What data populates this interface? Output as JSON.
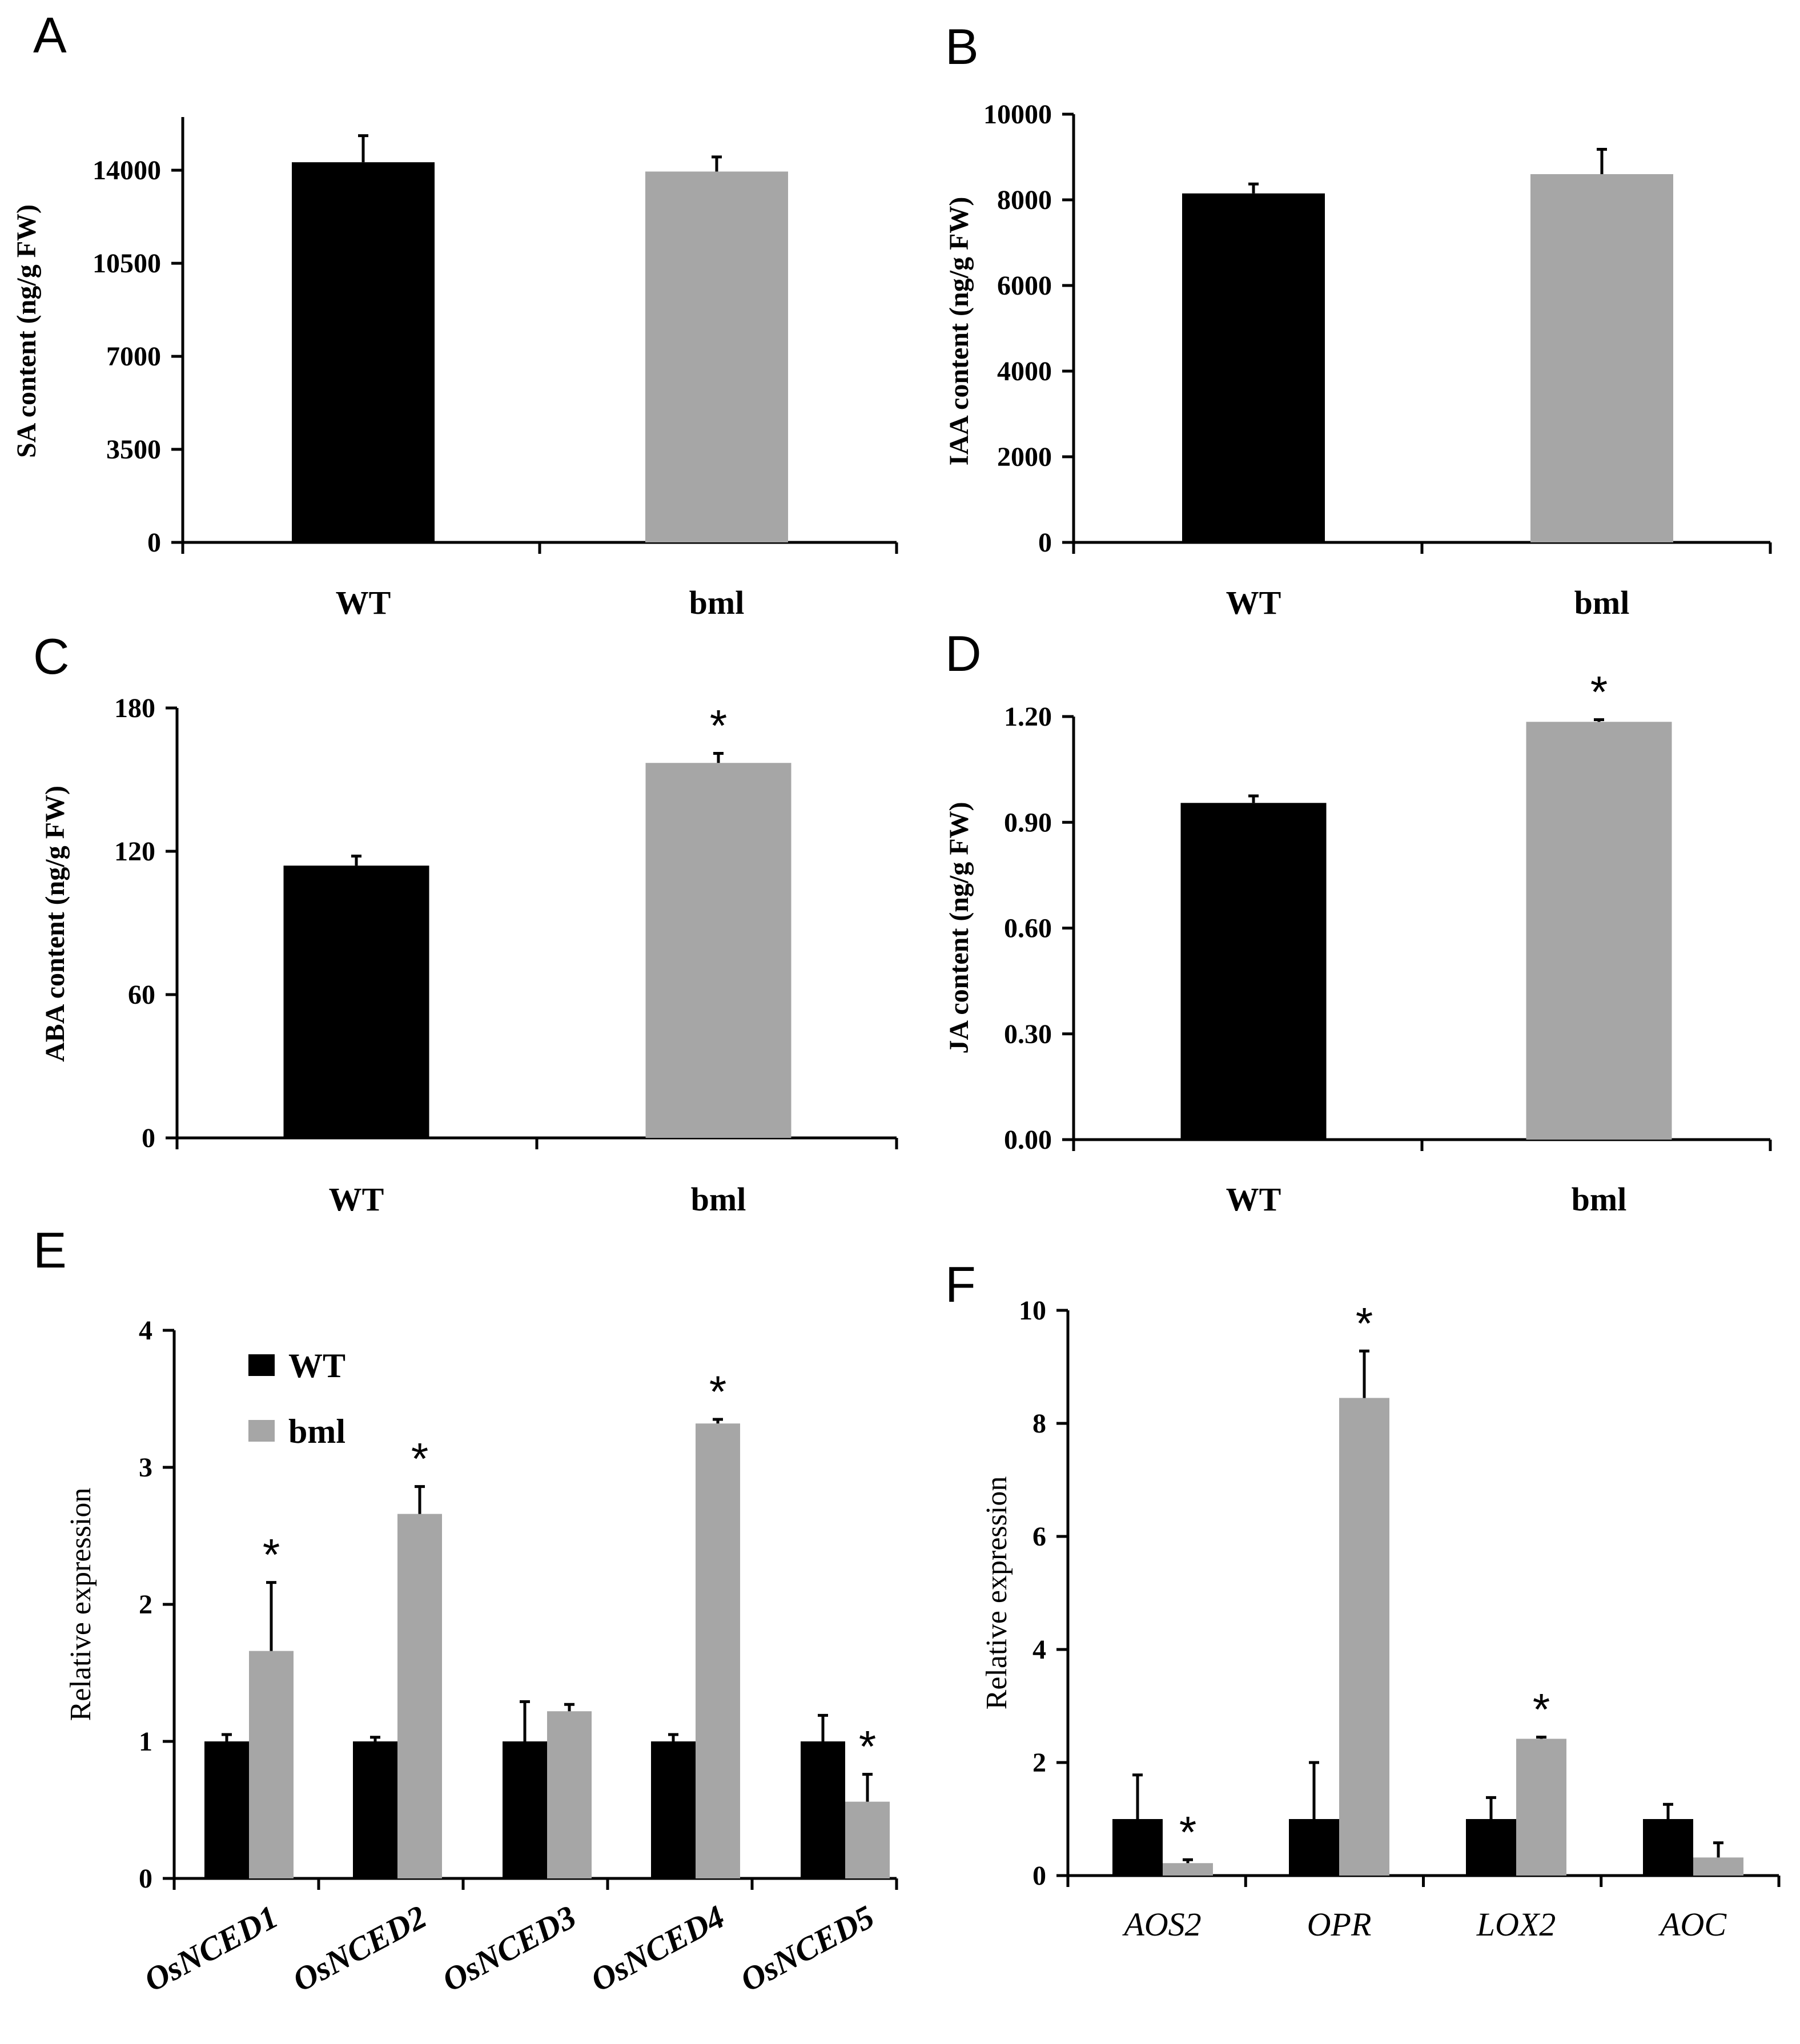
{
  "colors": {
    "wt": "#000000",
    "bml": "#a6a6a6",
    "axis": "#000000"
  },
  "legend": {
    "items": [
      {
        "label": "WT",
        "color_key": "wt"
      },
      {
        "label": "bml",
        "color_key": "bml"
      }
    ]
  },
  "chart_data": [
    {
      "panel": "A",
      "type": "bar",
      "ylabel": "SA content (ng/g FW)",
      "ylim": [
        0,
        16000
      ],
      "yticks": [
        0,
        3500,
        7000,
        10500,
        14000
      ],
      "ytick_labels": [
        "0",
        "3500",
        "7000",
        "10500",
        "14000"
      ],
      "categories": [
        "WT",
        "bml"
      ],
      "series": [
        {
          "name": "value",
          "values": [
            14300,
            13950
          ],
          "errors": [
            1000,
            550
          ],
          "colors": [
            "wt",
            "bml"
          ]
        }
      ],
      "significance": [
        "",
        ""
      ]
    },
    {
      "panel": "B",
      "type": "bar",
      "ylabel": "IAA content (ng/g FW)",
      "ylim": [
        0,
        10000
      ],
      "yticks": [
        0,
        2000,
        4000,
        6000,
        8000,
        10000
      ],
      "ytick_labels": [
        "0",
        "2000",
        "4000",
        "6000",
        "8000",
        "10000"
      ],
      "categories": [
        "WT",
        "bml"
      ],
      "series": [
        {
          "name": "value",
          "values": [
            8150,
            8600
          ],
          "errors": [
            220,
            580
          ],
          "colors": [
            "wt",
            "bml"
          ]
        }
      ],
      "significance": [
        "",
        ""
      ]
    },
    {
      "panel": "C",
      "type": "bar",
      "ylabel": "ABA content (ng/g FW)",
      "ylim": [
        0,
        180
      ],
      "yticks": [
        0,
        60,
        120,
        180
      ],
      "ytick_labels": [
        "0",
        "60",
        "120",
        "180"
      ],
      "categories": [
        "WT",
        "bml"
      ],
      "series": [
        {
          "name": "value",
          "values": [
            114,
            157
          ],
          "errors": [
            4,
            4
          ],
          "colors": [
            "wt",
            "bml"
          ]
        }
      ],
      "significance": [
        "",
        "*"
      ]
    },
    {
      "panel": "D",
      "type": "bar",
      "ylabel": "JA content (ng/g FW)",
      "ylim": [
        0,
        1.2
      ],
      "yticks": [
        0,
        0.3,
        0.6,
        0.9,
        1.2
      ],
      "ytick_labels": [
        "0.00",
        "0.30",
        "0.60",
        "0.90",
        "1.20"
      ],
      "categories": [
        "WT",
        "bml"
      ],
      "series": [
        {
          "name": "value",
          "values": [
            0.955,
            1.185
          ],
          "errors": [
            0.02,
            0.006
          ],
          "colors": [
            "wt",
            "bml"
          ]
        }
      ],
      "significance": [
        "",
        "*"
      ]
    },
    {
      "panel": "E",
      "type": "bar",
      "ylabel": "Relative expression",
      "ylim": [
        0,
        4
      ],
      "yticks": [
        0,
        1,
        2,
        3,
        4
      ],
      "ytick_labels": [
        "0",
        "1",
        "2",
        "3",
        "4"
      ],
      "categories": [
        "OsNCED1",
        "OsNCED2",
        "OsNCED3",
        "OsNCED4",
        "OsNCED5"
      ],
      "series": [
        {
          "name": "WT",
          "color_key": "wt",
          "values": [
            1.0,
            1.0,
            1.0,
            1.0,
            1.0
          ],
          "errors": [
            0.05,
            0.03,
            0.29,
            0.05,
            0.19
          ]
        },
        {
          "name": "bml",
          "color_key": "bml",
          "values": [
            1.66,
            2.66,
            1.22,
            3.32,
            0.56
          ],
          "errors": [
            0.5,
            0.2,
            0.05,
            0.03,
            0.2
          ]
        }
      ],
      "significance": [
        [
          "",
          "*"
        ],
        [
          "",
          "*"
        ],
        [
          "",
          ""
        ],
        [
          "",
          "*"
        ],
        [
          "",
          "*"
        ]
      ]
    },
    {
      "panel": "F",
      "type": "bar",
      "ylabel": "Relative expression",
      "ylim": [
        0,
        10
      ],
      "yticks": [
        0,
        2,
        4,
        6,
        8,
        10
      ],
      "ytick_labels": [
        "0",
        "2",
        "4",
        "6",
        "8",
        "10"
      ],
      "categories": [
        "AOS2",
        "OPR",
        "LOX2",
        "AOC"
      ],
      "series": [
        {
          "name": "WT",
          "color_key": "wt",
          "values": [
            1.0,
            1.0,
            1.0,
            1.0
          ],
          "errors": [
            0.78,
            1.0,
            0.38,
            0.26
          ]
        },
        {
          "name": "bml",
          "color_key": "bml",
          "values": [
            0.22,
            8.45,
            2.42,
            0.32
          ],
          "errors": [
            0.06,
            0.83,
            0.03,
            0.26
          ]
        }
      ],
      "significance": [
        [
          "",
          "*"
        ],
        [
          "",
          "*"
        ],
        [
          "",
          "*"
        ],
        [
          "",
          ""
        ]
      ]
    }
  ]
}
